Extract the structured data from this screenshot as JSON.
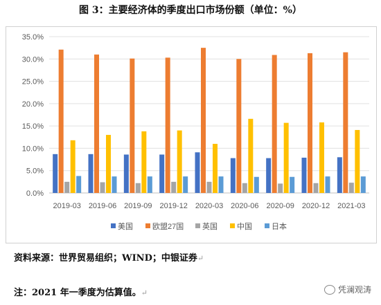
{
  "header": {
    "title": "图 3：主要经济体的季度出口市场份额（单位：%）"
  },
  "footer": {
    "source": "资料来源：世界贸易组织；WIND；中银证券",
    "note": "注：2021 年一季度为估算值。",
    "watermark": "凭澜观涛"
  },
  "chart_data": {
    "type": "bar",
    "title": "",
    "xlabel": "",
    "ylabel": "",
    "ylim": [
      0,
      35
    ],
    "y_ticks": [
      "0.0%",
      "5.0%",
      "10.0%",
      "15.0%",
      "20.0%",
      "25.0%",
      "30.0%",
      "35.0%"
    ],
    "grid": true,
    "legend_position": "bottom",
    "categories": [
      "2019-03",
      "2019-06",
      "2019-09",
      "2019-12",
      "2020-03",
      "2020-06",
      "2020-09",
      "2020-12",
      "2021-03"
    ],
    "series": [
      {
        "name": "美国",
        "color": "#4472c4",
        "values": [
          8.7,
          8.7,
          8.6,
          8.6,
          9.1,
          7.8,
          7.8,
          7.9,
          8.0
        ]
      },
      {
        "name": "欧盟27国",
        "color": "#ed7d31",
        "values": [
          32.1,
          31.0,
          30.1,
          30.3,
          32.5,
          30.0,
          30.9,
          31.3,
          31.5
        ]
      },
      {
        "name": "英国",
        "color": "#a5a5a5",
        "values": [
          2.5,
          2.4,
          2.2,
          2.5,
          2.5,
          2.2,
          2.1,
          2.2,
          2.3
        ]
      },
      {
        "name": "中国",
        "color": "#ffc000",
        "values": [
          11.8,
          13.0,
          13.8,
          14.0,
          11.0,
          16.6,
          15.7,
          15.8,
          14.1
        ]
      },
      {
        "name": "日本",
        "color": "#5b9bd5",
        "values": [
          3.8,
          3.7,
          3.7,
          3.7,
          3.7,
          3.6,
          3.6,
          3.7,
          3.7
        ]
      }
    ]
  }
}
